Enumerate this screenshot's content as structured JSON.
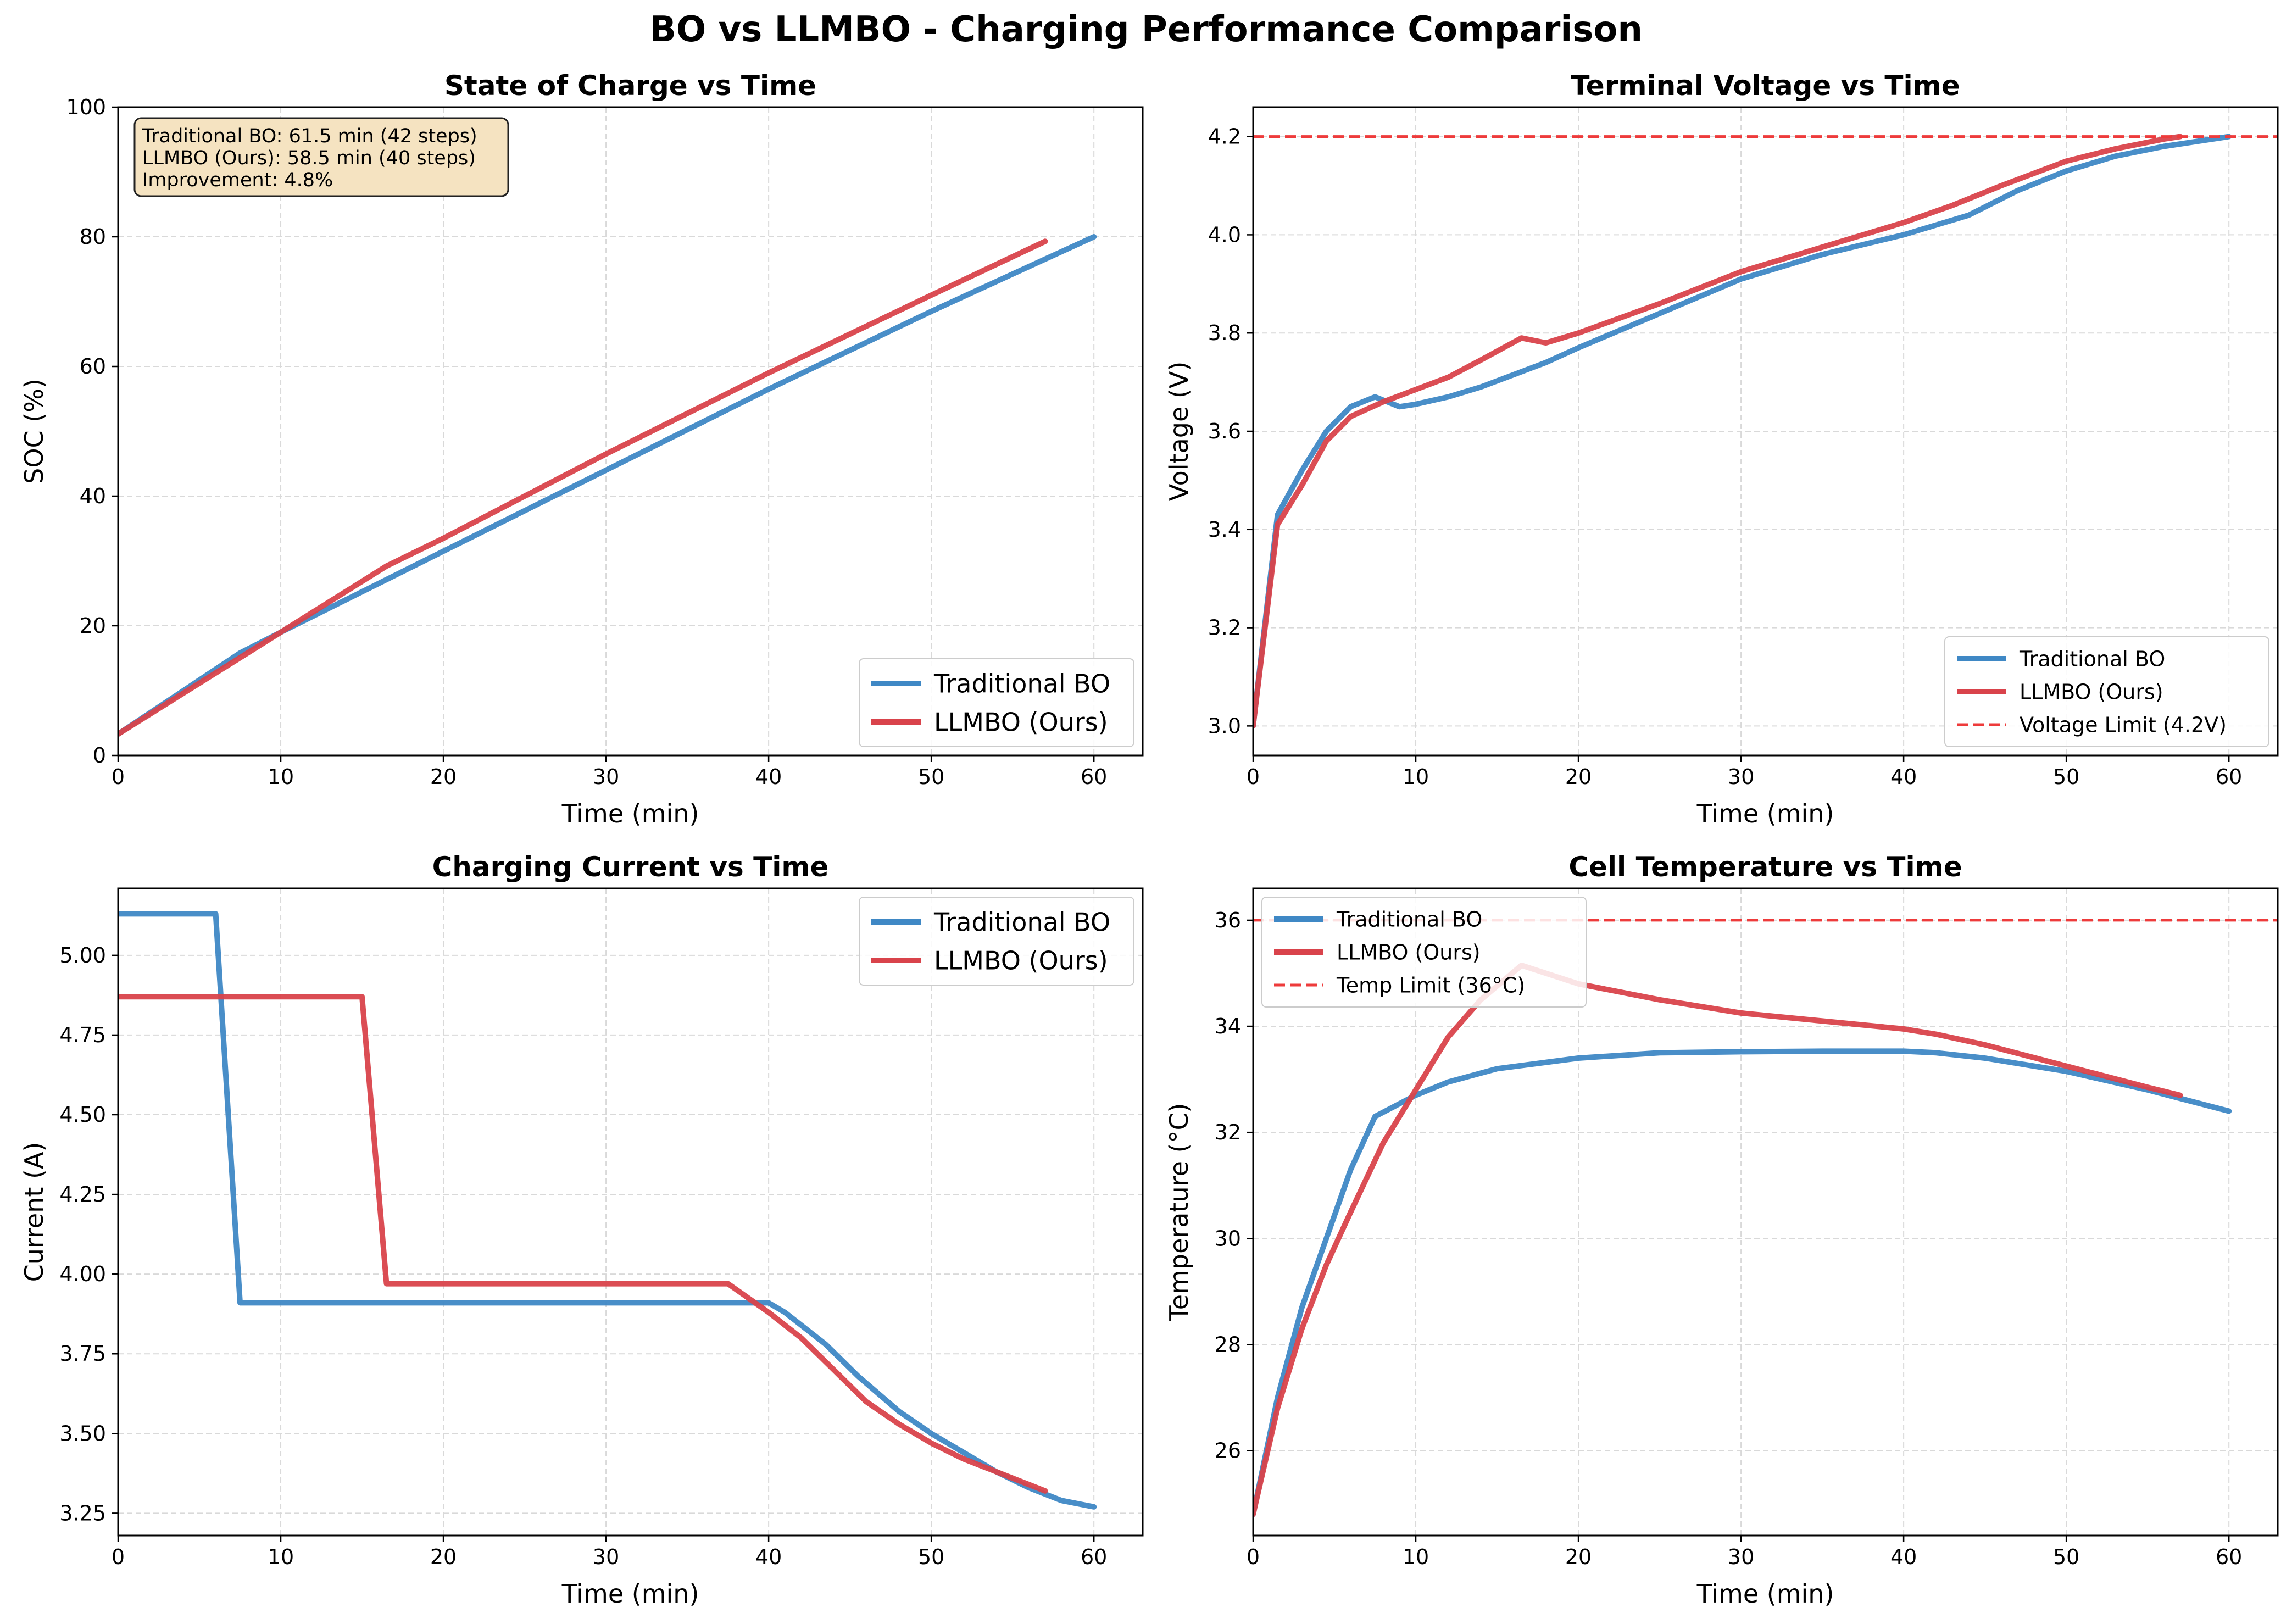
{
  "suptitle": "BO vs LLMBO - Charging Performance Comparison",
  "colors": {
    "traditional": "#3f88c5",
    "llmbo": "#d9434b",
    "limit": "#ee3b3b",
    "annotation_bg": "#f5e3c1",
    "grid": "#d9d9d9"
  },
  "chart_data": [
    {
      "type": "line",
      "title": "State of Charge vs Time",
      "xlabel": "Time (min)",
      "ylabel": "SOC (%)",
      "xlim": [
        0,
        63
      ],
      "ylim": [
        0,
        100
      ],
      "xticks": [
        "0",
        "10",
        "20",
        "30",
        "40",
        "50",
        "60"
      ],
      "yticks": [
        "0",
        "20",
        "40",
        "60",
        "80",
        "100"
      ],
      "grid": true,
      "legend": "lower right",
      "annotation": [
        "Traditional BO: 61.5 min (42 steps)",
        "LLMBO (Ours): 58.5 min (40 steps)",
        "Improvement: 4.8%"
      ],
      "series": [
        {
          "name": "Traditional BO",
          "style": "solid",
          "x": [
            0,
            7.5,
            10,
            20,
            30,
            40,
            50,
            60
          ],
          "y": [
            3.3,
            15.8,
            19.0,
            31.5,
            44.0,
            56.5,
            68.5,
            80.0
          ]
        },
        {
          "name": "LLMBO (Ours)",
          "style": "solid",
          "x": [
            0,
            10,
            16.5,
            20,
            30,
            40,
            50,
            57
          ],
          "y": [
            3.3,
            19.0,
            29.2,
            33.5,
            46.5,
            59.0,
            71.0,
            79.3
          ]
        }
      ]
    },
    {
      "type": "line",
      "title": "Terminal Voltage vs Time",
      "xlabel": "Time (min)",
      "ylabel": "Voltage (V)",
      "xlim": [
        0,
        63
      ],
      "ylim": [
        2.94,
        4.26
      ],
      "xticks": [
        "0",
        "10",
        "20",
        "30",
        "40",
        "50",
        "60"
      ],
      "yticks": [
        "3.0",
        "3.2",
        "3.4",
        "3.6",
        "3.8",
        "4.0",
        "4.2"
      ],
      "grid": true,
      "legend": "lower right",
      "series": [
        {
          "name": "Traditional BO",
          "style": "solid",
          "x": [
            0,
            1.5,
            3,
            4.5,
            6,
            7.5,
            9,
            10,
            12,
            14,
            16,
            18,
            20,
            25,
            30,
            35,
            40,
            44,
            47,
            50,
            53,
            56,
            58,
            60
          ],
          "y": [
            3.0,
            3.43,
            3.52,
            3.6,
            3.65,
            3.67,
            3.65,
            3.655,
            3.67,
            3.69,
            3.715,
            3.74,
            3.77,
            3.84,
            3.91,
            3.96,
            4.0,
            4.04,
            4.09,
            4.13,
            4.16,
            4.18,
            4.19,
            4.2
          ]
        },
        {
          "name": "LLMBO (Ours)",
          "style": "solid",
          "x": [
            0,
            1.5,
            3,
            4.5,
            6,
            8,
            10,
            12,
            14,
            16.5,
            18,
            20,
            25,
            30,
            35,
            40,
            43,
            46,
            50,
            53,
            56,
            57
          ],
          "y": [
            3.0,
            3.41,
            3.49,
            3.58,
            3.63,
            3.66,
            3.685,
            3.71,
            3.745,
            3.79,
            3.78,
            3.8,
            3.86,
            3.925,
            3.975,
            4.025,
            4.06,
            4.1,
            4.15,
            4.175,
            4.195,
            4.2
          ]
        },
        {
          "name": "Voltage Limit (4.2V)",
          "style": "dashed",
          "x": [
            0,
            63
          ],
          "y": [
            4.2,
            4.2
          ]
        }
      ]
    },
    {
      "type": "line",
      "title": "Charging Current vs Time",
      "xlabel": "Time (min)",
      "ylabel": "Current (A)",
      "xlim": [
        0,
        63
      ],
      "ylim": [
        3.18,
        5.21
      ],
      "xticks": [
        "0",
        "10",
        "20",
        "30",
        "40",
        "50",
        "60"
      ],
      "yticks": [
        "3.25",
        "3.50",
        "3.75",
        "4.00",
        "4.25",
        "4.50",
        "4.75",
        "5.00"
      ],
      "grid": true,
      "legend": "upper right",
      "series": [
        {
          "name": "Traditional BO",
          "style": "solid",
          "x": [
            0,
            6,
            7.5,
            40,
            41,
            43.5,
            45.5,
            48,
            50,
            52,
            54,
            56,
            58,
            60
          ],
          "y": [
            5.13,
            5.13,
            3.91,
            3.91,
            3.88,
            3.78,
            3.68,
            3.57,
            3.5,
            3.44,
            3.38,
            3.33,
            3.29,
            3.27
          ]
        },
        {
          "name": "LLMBO (Ours)",
          "style": "solid",
          "x": [
            0,
            15,
            16.5,
            37.5,
            40,
            42,
            44,
            46,
            48,
            50,
            52,
            54,
            57
          ],
          "y": [
            4.87,
            4.87,
            3.97,
            3.97,
            3.88,
            3.8,
            3.7,
            3.6,
            3.53,
            3.47,
            3.42,
            3.38,
            3.32
          ]
        }
      ]
    },
    {
      "type": "line",
      "title": "Cell Temperature vs Time",
      "xlabel": "Time (min)",
      "ylabel": "Temperature (°C)",
      "xlim": [
        0,
        63
      ],
      "ylim": [
        24.4,
        36.6
      ],
      "xticks": [
        "0",
        "10",
        "20",
        "30",
        "40",
        "50",
        "60"
      ],
      "yticks": [
        "26",
        "28",
        "30",
        "32",
        "34",
        "36"
      ],
      "grid": true,
      "legend": "upper left",
      "series": [
        {
          "name": "Traditional BO",
          "style": "solid",
          "x": [
            0,
            1.5,
            3,
            4.5,
            6,
            7.5,
            10,
            12,
            15,
            20,
            25,
            30,
            35,
            40,
            42,
            45,
            50,
            55,
            60
          ],
          "y": [
            24.8,
            27.0,
            28.7,
            30.0,
            31.3,
            32.3,
            32.7,
            32.95,
            33.2,
            33.4,
            33.5,
            33.52,
            33.53,
            33.53,
            33.5,
            33.4,
            33.15,
            32.8,
            32.4
          ]
        },
        {
          "name": "LLMBO (Ours)",
          "style": "solid",
          "x": [
            0,
            1.5,
            3,
            4.5,
            6,
            8,
            10,
            12,
            14,
            16.5,
            18,
            20,
            25,
            30,
            35,
            40,
            42,
            45,
            50,
            55,
            57
          ],
          "y": [
            24.8,
            26.8,
            28.3,
            29.5,
            30.5,
            31.8,
            32.8,
            33.8,
            34.5,
            35.15,
            35.0,
            34.8,
            34.5,
            34.25,
            34.1,
            33.95,
            33.85,
            33.65,
            33.25,
            32.85,
            32.7
          ]
        },
        {
          "name": "Temp Limit (36°C)",
          "style": "dashed",
          "x": [
            0,
            63
          ],
          "y": [
            36,
            36
          ]
        }
      ]
    }
  ]
}
